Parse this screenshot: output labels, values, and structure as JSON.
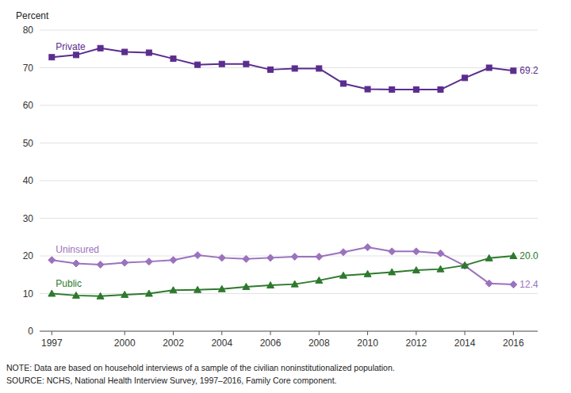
{
  "chart_data": {
    "type": "line",
    "y_label": "Percent",
    "x": [
      1997,
      1998,
      1999,
      2000,
      2001,
      2002,
      2003,
      2004,
      2005,
      2006,
      2007,
      2008,
      2009,
      2010,
      2011,
      2012,
      2013,
      2014,
      2015,
      2016
    ],
    "series": [
      {
        "name": "Private",
        "color": "#5b2d8e",
        "marker": "square",
        "values": [
          72.8,
          73.4,
          75.2,
          74.2,
          74.0,
          72.4,
          70.8,
          71.0,
          71.0,
          69.5,
          69.8,
          69.8,
          65.8,
          64.3,
          64.2,
          64.2,
          64.2,
          67.3,
          70.0,
          69.2
        ],
        "value_labels": [
          null,
          null,
          null,
          null,
          null,
          null,
          null,
          null,
          null,
          null,
          null,
          null,
          null,
          null,
          null,
          null,
          null,
          null,
          null,
          "69.2"
        ]
      },
      {
        "name": "Uninsured",
        "color": "#9b72be",
        "marker": "diamond",
        "values": [
          18.9,
          18.0,
          17.7,
          18.2,
          18.5,
          18.9,
          20.2,
          19.5,
          19.2,
          19.5,
          19.8,
          19.8,
          21.0,
          22.3,
          21.2,
          21.2,
          20.7,
          17.4,
          12.7,
          12.4
        ],
        "value_labels": [
          null,
          null,
          null,
          null,
          null,
          null,
          null,
          null,
          null,
          null,
          null,
          null,
          null,
          null,
          null,
          null,
          null,
          null,
          null,
          "12.4"
        ]
      },
      {
        "name": "Public",
        "color": "#2d7a2d",
        "marker": "triangle",
        "values": [
          10.0,
          9.5,
          9.3,
          9.7,
          10.0,
          10.9,
          11.0,
          11.2,
          11.8,
          12.2,
          12.5,
          13.5,
          14.8,
          15.2,
          15.7,
          16.2,
          16.5,
          17.5,
          19.4,
          20.0
        ],
        "value_labels": [
          null,
          null,
          null,
          null,
          null,
          null,
          null,
          null,
          null,
          null,
          null,
          null,
          null,
          null,
          null,
          null,
          null,
          null,
          null,
          "20.0"
        ]
      }
    ],
    "xlim": [
      1996.5,
      2017.0
    ],
    "xticks": [
      1997,
      2000,
      2002,
      2004,
      2006,
      2008,
      2010,
      2012,
      2014,
      2016
    ],
    "ylim": [
      0,
      80
    ],
    "yticks": [
      0,
      10,
      20,
      30,
      40,
      50,
      60,
      70,
      80
    ],
    "grid": true,
    "notes": [
      "NOTE: Data are based on household interviews of a sample of the civilian noninstitutionalized population.",
      "SOURCE: NCHS, National Health Interview Survey, 1997–2016, Family Core component."
    ]
  }
}
